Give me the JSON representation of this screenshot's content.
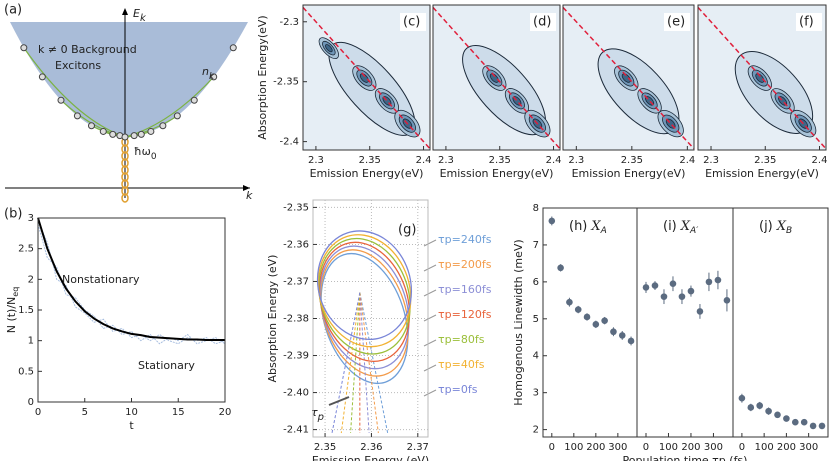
{
  "diagram_a": {
    "label": "(a)",
    "energy": "E",
    "energy_sub": "k",
    "momentum": "k",
    "region": [
      "k ≠ 0 Background",
      "Excitons"
    ],
    "occupation": "n",
    "occupation_sub": "k",
    "photon": "ħω",
    "photon_sub": "0"
  },
  "chart_data": [
    {
      "type": "line",
      "label": "(b)",
      "xlabel": "t",
      "ylabel": "N (t)/N",
      "ylabel_sub": "eq",
      "annotations": [
        "Nonstationary",
        "Stationary"
      ],
      "x": [
        0,
        1,
        2,
        3,
        4,
        5,
        6,
        7,
        8,
        9,
        10,
        11,
        12,
        13,
        14,
        15,
        16,
        17,
        18,
        19,
        20
      ],
      "xlim": [
        0,
        20
      ],
      "ylim": [
        0,
        3
      ],
      "xticks": [
        0,
        5,
        10,
        15,
        20
      ],
      "yticks": [
        0,
        0.5,
        1,
        1.5,
        2,
        2.5,
        3
      ],
      "series": [
        {
          "color": "#a9bfe0",
          "values": [
            2.9,
            2.35,
            2.2,
            1.75,
            1.7,
            1.5,
            1.4,
            1.2,
            1.25,
            1.1,
            1.15,
            1.0,
            1.1,
            0.95,
            1.05,
            1.0,
            1.1,
            0.95,
            1.0,
            1.05,
            0.95
          ]
        },
        {
          "color": "#a9bfe0",
          "values": [
            2.95,
            2.6,
            2.0,
            1.9,
            1.55,
            1.45,
            1.3,
            1.35,
            1.15,
            1.2,
            1.05,
            1.1,
            1.0,
            1.1,
            1.0,
            0.95,
            1.05,
            1.0,
            1.05,
            0.95,
            1.0
          ]
        },
        {
          "color": "#000000",
          "values": [
            3,
            2.5,
            2.13,
            1.85,
            1.64,
            1.48,
            1.36,
            1.27,
            1.2,
            1.15,
            1.11,
            1.09,
            1.06,
            1.05,
            1.04,
            1.03,
            1.02,
            1.02,
            1.01,
            1.01,
            1.01
          ]
        }
      ]
    },
    {
      "type": "contour",
      "label": "(c)",
      "xlabel": "Emission Energy(eV)",
      "ylabel": "Absorption Energy(eV)",
      "xlim": [
        2.288,
        2.406
      ],
      "ylim": [
        -2.407,
        -2.286
      ],
      "xticks": [
        2.3,
        2.35,
        2.4
      ],
      "yticks": [
        -2.3,
        -2.35,
        -2.4
      ]
    },
    {
      "type": "contour",
      "label": "(d)",
      "xlabel": "Emission Energy(eV)",
      "xlim": [
        2.288,
        2.406
      ],
      "ylim": [
        -2.407,
        -2.286
      ],
      "xticks": [
        2.3,
        2.35,
        2.4
      ]
    },
    {
      "type": "contour",
      "label": "(e)",
      "xlabel": "Emission Energy(eV)",
      "xlim": [
        2.288,
        2.406
      ],
      "ylim": [
        -2.407,
        -2.286
      ],
      "xticks": [
        2.3,
        2.35,
        2.4
      ]
    },
    {
      "type": "contour",
      "label": "(f)",
      "xlabel": "Emission Energy(eV)",
      "xlim": [
        2.288,
        2.406
      ],
      "ylim": [
        -2.407,
        -2.286
      ],
      "xticks": [
        2.3,
        2.35,
        2.4
      ]
    },
    {
      "type": "loops",
      "label": "(g)",
      "xlabel": "Emission Energy (eV)",
      "ylabel": "Absorption Energy (eV)",
      "grid": true,
      "arrow_label": "τ",
      "arrow_label_sub": "p",
      "xlim": [
        2.3474,
        2.3722
      ],
      "ylim": [
        -2.412,
        -2.348
      ],
      "xticks": [
        2.35,
        2.36,
        2.37
      ],
      "yticks": [
        -2.35,
        -2.36,
        -2.37,
        -2.38,
        -2.39,
        {
          "value": -2.4,
          "label": "-2.40"
        },
        -2.41
      ],
      "series": [
        {
          "name": "τp=240fs",
          "color": "#6f9fd8"
        },
        {
          "name": "τp=200fs",
          "color": "#f39b4a"
        },
        {
          "name": "τp=160fs",
          "color": "#8c8fd6"
        },
        {
          "name": "τp=120fs",
          "color": "#e8643c"
        },
        {
          "name": "τp=80fs",
          "color": "#9bbf3a"
        },
        {
          "name": "τp=40fs",
          "color": "#f2b233"
        },
        {
          "name": "τp=0fs",
          "color": "#7a86d8"
        }
      ]
    },
    {
      "type": "errorbar",
      "label": "(h)",
      "symbol": "X",
      "symbol_sub": "A",
      "ylabel": "Homogenous Linewidth (meV)",
      "color": "#5b6b80",
      "x": [
        0,
        40,
        80,
        120,
        160,
        200,
        240,
        280,
        320,
        360
      ],
      "values": [
        7.65,
        6.38,
        5.45,
        5.25,
        5.05,
        4.85,
        4.95,
        4.65,
        4.55,
        4.4
      ],
      "errors": [
        0.12,
        0.1,
        0.12,
        0.1,
        0.1,
        0.1,
        0.1,
        0.12,
        0.12,
        0.12
      ],
      "xlim": [
        -40,
        387
      ],
      "ylim": [
        1.8,
        8
      ],
      "xticks": [
        0,
        100,
        200,
        300
      ],
      "yticks": [
        2,
        3,
        4,
        5,
        6,
        7,
        8
      ]
    },
    {
      "type": "errorbar",
      "label": "(i)",
      "symbol": "X",
      "symbol_sub": "A′",
      "xlabel": "Population time τp (fs)",
      "color": "#5b6b80",
      "x": [
        0,
        40,
        80,
        120,
        160,
        200,
        240,
        280,
        320,
        360
      ],
      "values": [
        5.85,
        5.9,
        5.6,
        5.95,
        5.6,
        5.75,
        5.2,
        6.0,
        6.05,
        5.5
      ],
      "errors": [
        0.15,
        0.12,
        0.2,
        0.2,
        0.2,
        0.15,
        0.2,
        0.25,
        0.25,
        0.3
      ],
      "xlim": [
        -40,
        387
      ],
      "ylim": [
        1.8,
        8
      ],
      "xticks": [
        0,
        100,
        200,
        300
      ]
    },
    {
      "type": "errorbar",
      "label": "(j)",
      "symbol": "X",
      "symbol_sub": "B",
      "color": "#5b6b80",
      "x": [
        0,
        40,
        80,
        120,
        160,
        200,
        240,
        280,
        320,
        360
      ],
      "values": [
        2.85,
        2.6,
        2.65,
        2.5,
        2.4,
        2.3,
        2.2,
        2.2,
        2.1,
        2.1
      ],
      "errors": [
        0.12,
        0.1,
        0.1,
        0.1,
        0.08,
        0.08,
        0.06,
        0.06,
        0.05,
        0.05
      ],
      "xlim": [
        -40,
        387
      ],
      "ylim": [
        1.8,
        8
      ],
      "xticks": [
        0,
        100,
        200,
        300
      ]
    }
  ]
}
